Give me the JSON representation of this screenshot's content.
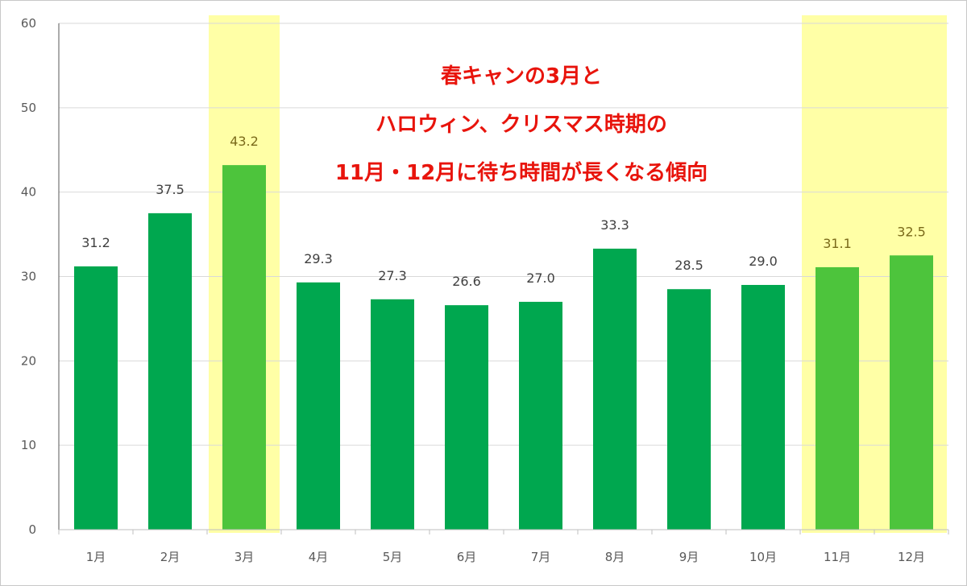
{
  "chart_data": {
    "type": "bar",
    "categories": [
      "1月",
      "2月",
      "3月",
      "4月",
      "5月",
      "6月",
      "7月",
      "8月",
      "9月",
      "10月",
      "11月",
      "12月"
    ],
    "values": [
      31.2,
      37.5,
      43.2,
      29.3,
      27.3,
      26.6,
      27.0,
      33.3,
      28.5,
      29.0,
      31.1,
      32.5
    ],
    "data_labels": [
      "31.2",
      "37.5",
      "43.2",
      "29.3",
      "27.3",
      "26.6",
      "27.0",
      "33.3",
      "28.5",
      "29.0",
      "31.1",
      "32.5"
    ],
    "ylim": [
      0,
      60
    ],
    "yticks": [
      "0",
      "10",
      "20",
      "30",
      "40",
      "50",
      "60"
    ],
    "grid": true,
    "highlighted_categories": [
      "3月",
      "11月",
      "12月"
    ],
    "annotation_lines": [
      "春キャンの3月と",
      "ハロウィン、クリスマス時期の",
      "11月・12月に待ち時間が長くなる傾向"
    ],
    "colors": {
      "bar": "#00a74f",
      "bar_highlight": "#4dc43c",
      "highlight_band": "#ffffa6",
      "annotation": "#e8140c",
      "grid": "#d9d9d9"
    }
  }
}
